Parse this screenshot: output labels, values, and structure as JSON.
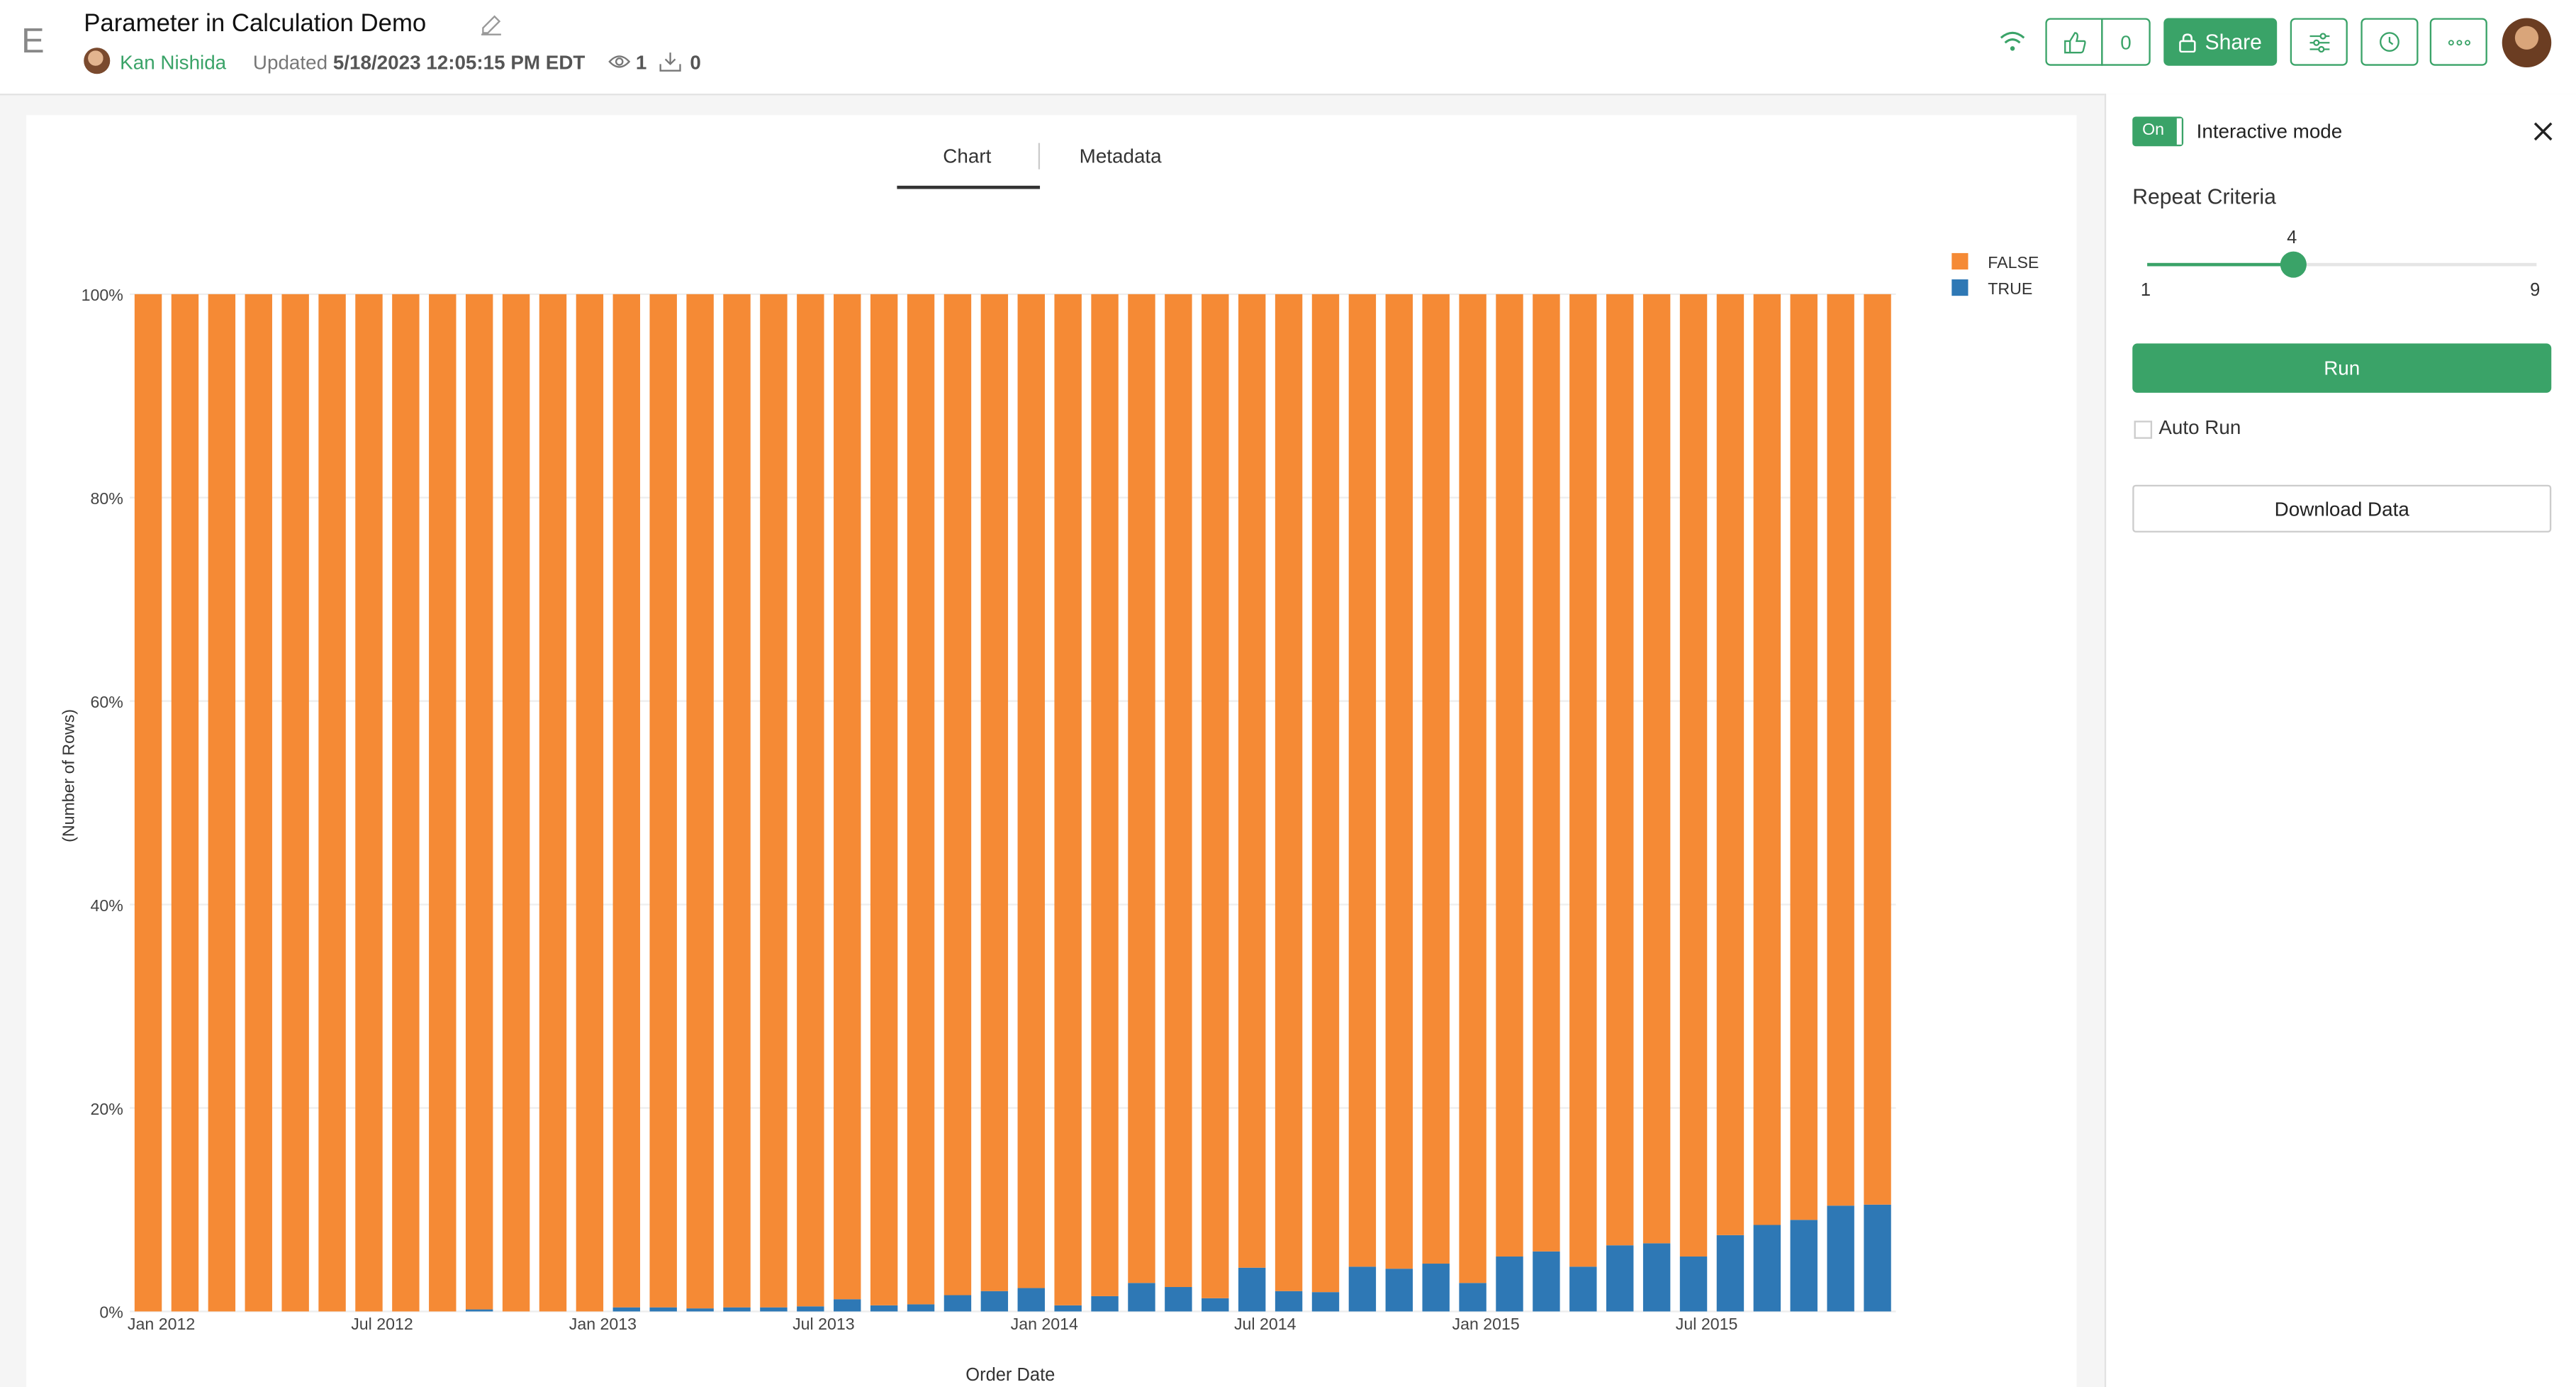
{
  "header": {
    "app_logo": "E",
    "title": "Parameter in Calculation Demo",
    "author": "Kan Nishida",
    "updated_label": "Updated",
    "updated_time": "5/18/2023 12:05:15 PM EDT",
    "views": "1",
    "downloads": "0",
    "like_count": "0",
    "share_label": "Share"
  },
  "tabs": [
    "Chart",
    "Metadata"
  ],
  "sidebar": {
    "toggle_label": "On",
    "interactive_mode_label": "Interactive mode",
    "criteria_label": "Repeat Criteria",
    "slider": {
      "value": "4",
      "min": "1",
      "max": "9"
    },
    "run_label": "Run",
    "auto_run_label": "Auto Run",
    "download_label": "Download Data"
  },
  "colors": {
    "accent": "#3aa368",
    "false": "#f58a35",
    "true": "#2e78b5"
  },
  "chart_data": {
    "type": "bar",
    "stacked": "percent",
    "xlabel": "Order Date",
    "ylabel": "(Number of Rows)",
    "ylim": [
      0,
      100
    ],
    "y_ticks": [
      "0%",
      "20%",
      "40%",
      "60%",
      "80%",
      "100%"
    ],
    "x_tick_labels": [
      {
        "index": 0,
        "label": "Jan 2012"
      },
      {
        "index": 6,
        "label": "Jul 2012"
      },
      {
        "index": 12,
        "label": "Jan 2013"
      },
      {
        "index": 18,
        "label": "Jul 2013"
      },
      {
        "index": 24,
        "label": "Jan 2014"
      },
      {
        "index": 30,
        "label": "Jul 2014"
      },
      {
        "index": 36,
        "label": "Jan 2015"
      },
      {
        "index": 42,
        "label": "Jul 2015"
      }
    ],
    "legend_position": "top-right",
    "categories": [
      "2012-01",
      "2012-02",
      "2012-03",
      "2012-04",
      "2012-05",
      "2012-06",
      "2012-07",
      "2012-08",
      "2012-09",
      "2012-10",
      "2012-11",
      "2012-12",
      "2013-01",
      "2013-02",
      "2013-03",
      "2013-04",
      "2013-05",
      "2013-06",
      "2013-07",
      "2013-08",
      "2013-09",
      "2013-10",
      "2013-11",
      "2013-12",
      "2014-01",
      "2014-02",
      "2014-03",
      "2014-04",
      "2014-05",
      "2014-06",
      "2014-07",
      "2014-08",
      "2014-09",
      "2014-10",
      "2014-11",
      "2014-12",
      "2015-01",
      "2015-02",
      "2015-03",
      "2015-04",
      "2015-05",
      "2015-06",
      "2015-07",
      "2015-08",
      "2015-09",
      "2015-10",
      "2015-11",
      "2015-12"
    ],
    "series": [
      {
        "name": "FALSE",
        "values": [
          100,
          100,
          100,
          100,
          100,
          100,
          100,
          100,
          100,
          99.8,
          100,
          100,
          100,
          99.6,
          99.6,
          99.7,
          99.6,
          99.6,
          99.5,
          98.8,
          99.4,
          99.3,
          98.4,
          98.0,
          97.7,
          99.4,
          98.5,
          97.2,
          97.6,
          98.7,
          95.7,
          98.0,
          98.1,
          95.6,
          95.8,
          95.3,
          97.2,
          94.6,
          94.1,
          95.6,
          93.5,
          93.3,
          94.6,
          92.5,
          91.5,
          91.0,
          89.6,
          89.5
        ]
      },
      {
        "name": "TRUE",
        "values": [
          0,
          0,
          0,
          0,
          0,
          0,
          0,
          0,
          0,
          0.2,
          0,
          0,
          0,
          0.4,
          0.4,
          0.3,
          0.4,
          0.4,
          0.5,
          1.2,
          0.6,
          0.7,
          1.6,
          2.0,
          2.3,
          0.6,
          1.5,
          2.8,
          2.4,
          1.3,
          4.3,
          2.0,
          1.9,
          4.4,
          4.2,
          4.7,
          2.8,
          5.4,
          5.9,
          4.4,
          6.5,
          6.7,
          5.4,
          7.5,
          8.5,
          9.0,
          10.4,
          10.5
        ]
      }
    ]
  }
}
